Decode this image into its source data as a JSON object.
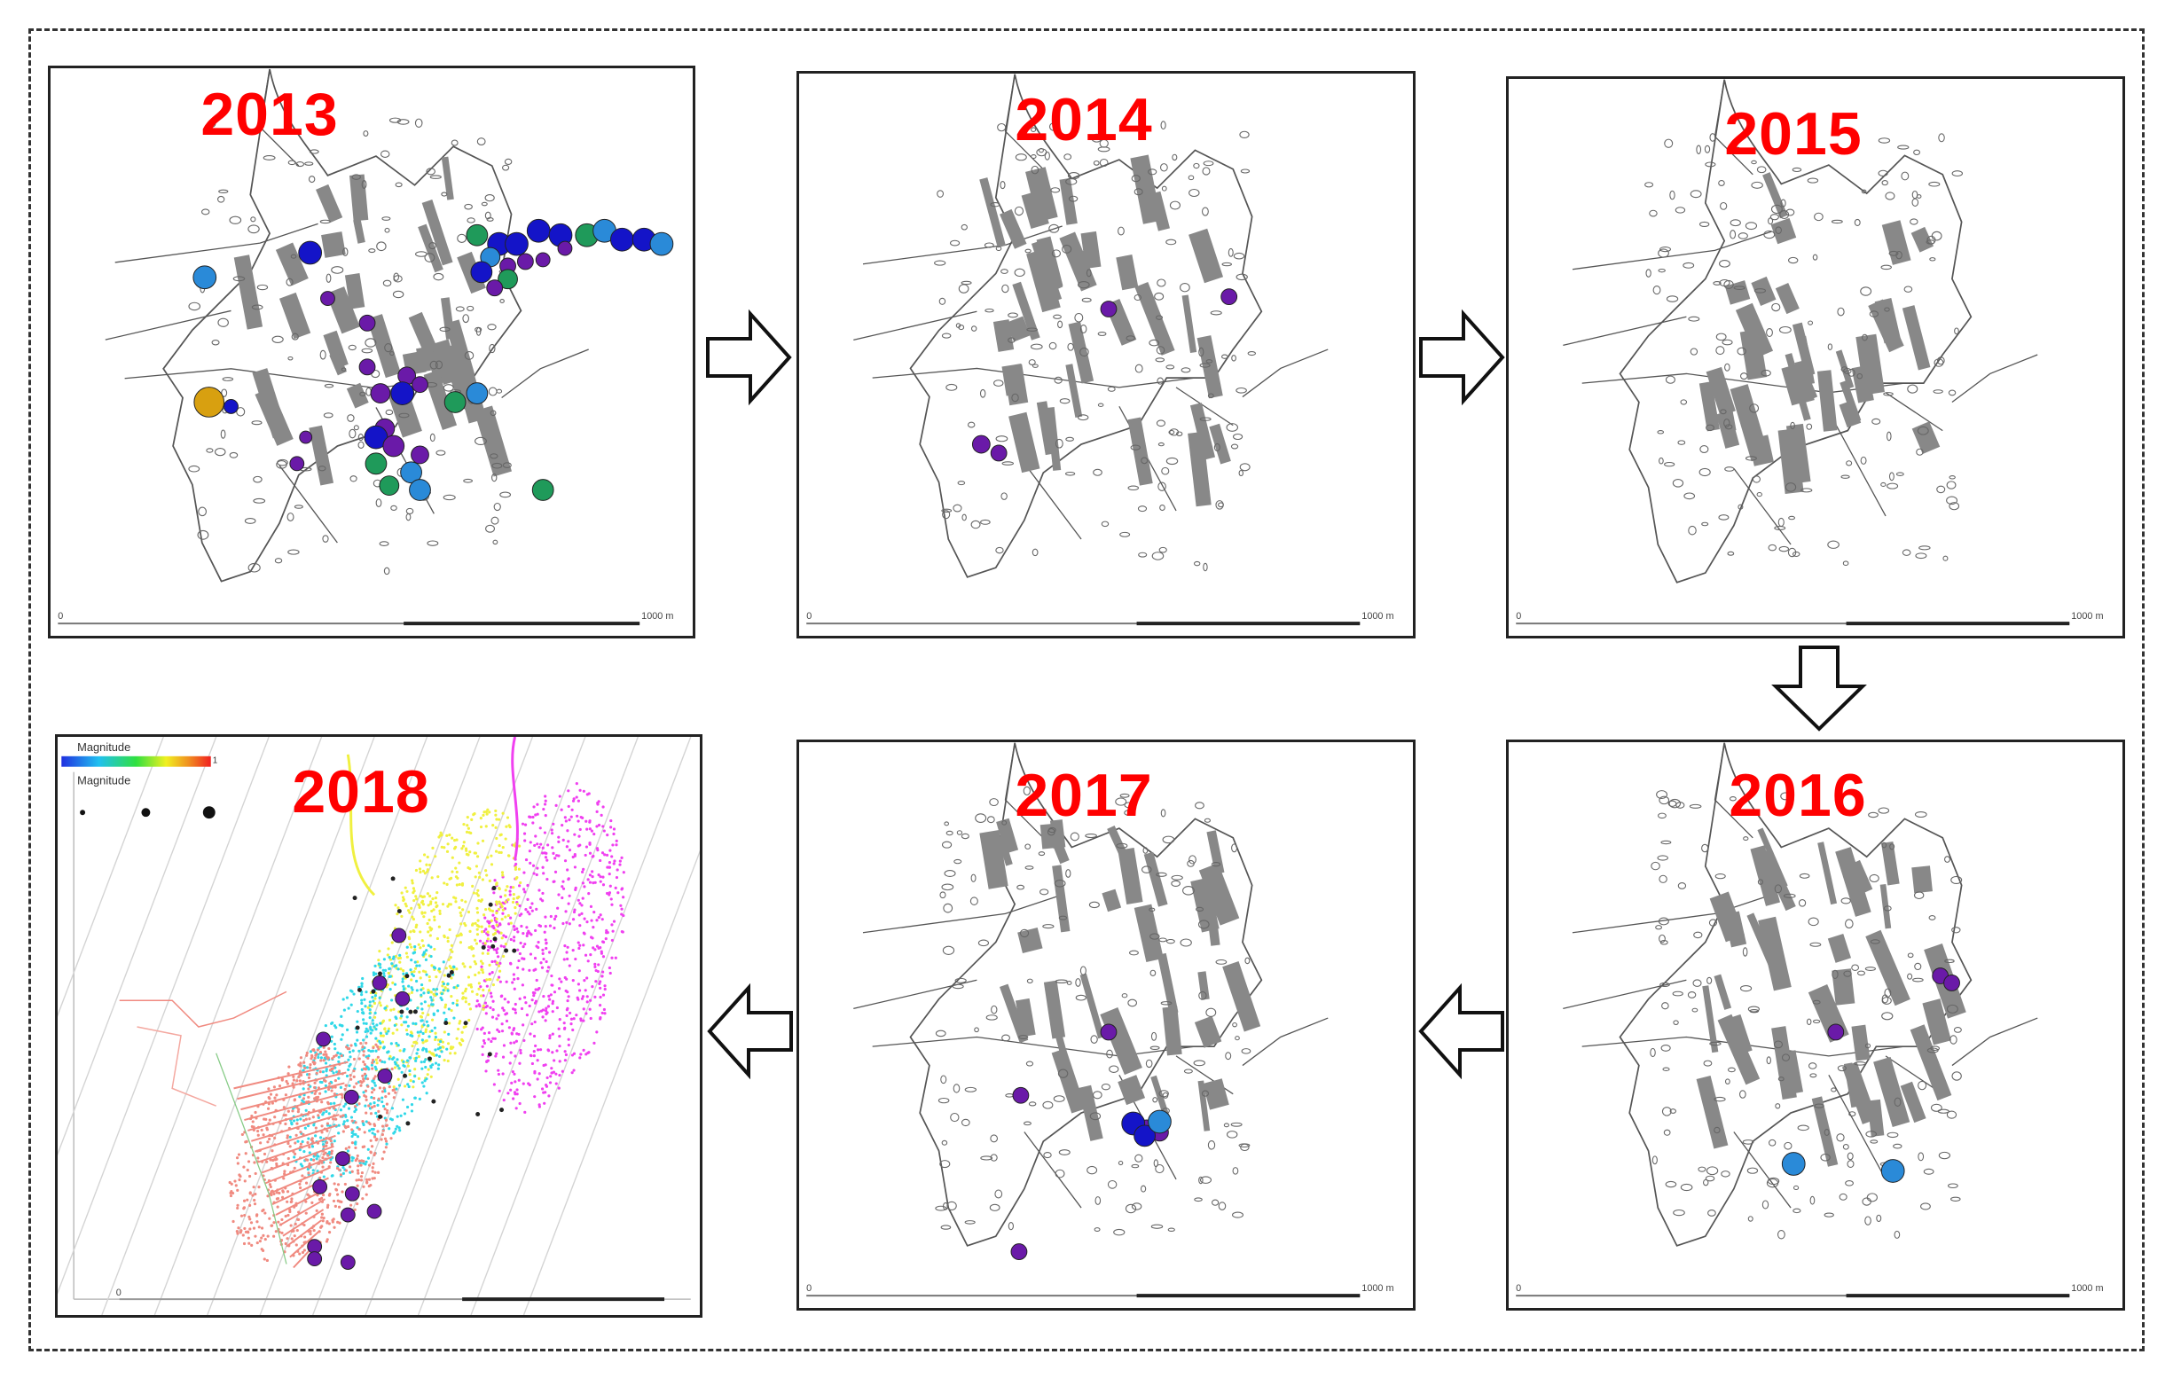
{
  "panels": [
    {
      "year": "2013",
      "scale_start": "0",
      "scale_end": "1000 m"
    },
    {
      "year": "2014",
      "scale_start": "0",
      "scale_end": "1000 m"
    },
    {
      "year": "2015",
      "scale_start": "0",
      "scale_end": "1000 m"
    },
    {
      "year": "2016",
      "scale_start": "0",
      "scale_end": "1000 m"
    },
    {
      "year": "2017",
      "scale_start": "0",
      "scale_end": "1000 m"
    },
    {
      "year": "2018",
      "scale_start": "0",
      "scale_end": ""
    }
  ],
  "legend": {
    "color_title": "Magnitude",
    "size_title": "Magnitude",
    "colorbar_min": "",
    "colorbar_max": "1"
  },
  "colors": {
    "year_label": "#ff0000",
    "event_purple": "#6a1aa8",
    "event_blue": "#1414c8",
    "event_lightblue": "#2a8ad8",
    "event_green": "#1f9a5a",
    "event_gold": "#d8a010",
    "workings": "#888888",
    "outline": "#555555",
    "zone_pink": "#f08a80",
    "zone_cyan": "#30d8e8",
    "zone_yellow": "#f0f040",
    "zone_magenta": "#f040f0"
  }
}
